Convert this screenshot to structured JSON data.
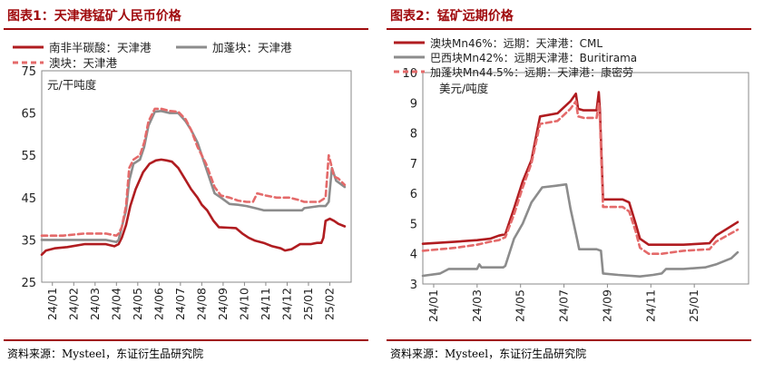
{
  "chart_data": [
    {
      "type": "line",
      "title": "图表1：天津港锰矿人民币价格",
      "ylabel": "元/干吨度",
      "ylim": [
        25,
        75
      ],
      "yticks": [
        "75",
        "65",
        "55",
        "45",
        "35",
        "25"
      ],
      "xlim": [
        0,
        14.5
      ],
      "xticks": [
        "24/01",
        "24/02",
        "24/03",
        "24/04",
        "24/05",
        "24/06",
        "24/07",
        "24/08",
        "24/09",
        "24/10",
        "24/11",
        "24/12",
        "25/01",
        "25/02"
      ],
      "grid": false,
      "legend": "top",
      "source": "资料来源：Mysteel，东证衍生品研究院",
      "series": [
        {
          "name": "南非半碳酸：天津港",
          "color": "#b01c20",
          "dash": "solid",
          "x": [
            0,
            0.2,
            0.6,
            1.2,
            2,
            3,
            3.4,
            3.6,
            3.75,
            3.95,
            4.15,
            4.4,
            4.75,
            5.05,
            5.35,
            5.6,
            5.85,
            6.1,
            6.4,
            6.7,
            7,
            7.3,
            7.5,
            7.75,
            8.05,
            8.3,
            9.1,
            9.4,
            9.7,
            10,
            10.4,
            10.8,
            11.2,
            11.4,
            11.7,
            12.1,
            12.6,
            12.9,
            13.1,
            13.2,
            13.3,
            13.5,
            13.7,
            13.9,
            14.2
          ],
          "y": [
            31.5,
            32.5,
            33,
            33.3,
            34,
            34,
            33.5,
            34,
            35.5,
            38.5,
            43,
            47,
            51,
            53,
            53.8,
            54,
            53.8,
            53.5,
            52,
            49.5,
            47,
            45,
            43.3,
            42,
            39.5,
            38,
            37.8,
            36.5,
            35.5,
            34.8,
            34.3,
            33.5,
            33,
            32.5,
            32.8,
            34,
            34,
            34.3,
            34.3,
            35.5,
            39.5,
            40,
            39.5,
            38.8,
            38.2
          ]
        },
        {
          "name": "加蓬块：天津港",
          "color": "#8c8c8c",
          "dash": "solid",
          "x": [
            0,
            1,
            2,
            3,
            3.5,
            3.6,
            3.75,
            3.95,
            4.1,
            4.3,
            4.6,
            4.8,
            5.0,
            5.3,
            5.6,
            6,
            6.4,
            6.75,
            7,
            7.3,
            7.7,
            8.1,
            8.4,
            8.8,
            9.2,
            9.6,
            10,
            10.4,
            11,
            11.6,
            12,
            12.2,
            12.3,
            13,
            13.3,
            13.45,
            13.6,
            13.8,
            14.2
          ],
          "y": [
            35,
            35,
            35,
            35,
            34.5,
            35,
            38,
            42,
            49,
            53,
            54,
            57,
            62,
            65.3,
            65.5,
            65,
            65,
            63,
            61,
            58,
            52,
            46,
            45,
            43.5,
            43.3,
            43,
            42.5,
            42,
            42,
            42,
            42,
            42,
            42.5,
            43,
            43,
            44,
            52,
            49,
            47.5
          ]
        },
        {
          "name": "澳块：天津港",
          "color": "#e46a6a",
          "dash": "dashed",
          "x": [
            0,
            1,
            2,
            3,
            3.5,
            3.6,
            3.75,
            3.95,
            4.1,
            4.3,
            4.6,
            4.8,
            5.0,
            5.3,
            5.6,
            6,
            6.4,
            6.75,
            7,
            7.3,
            7.7,
            8.1,
            8.4,
            8.8,
            9.2,
            9.6,
            9.9,
            10.1,
            10.5,
            11,
            11.6,
            12,
            12.3,
            12.6,
            13,
            13.3,
            13.45,
            13.55,
            13.7,
            13.9,
            14.2
          ],
          "y": [
            36,
            36,
            36.5,
            36.5,
            36,
            36.5,
            38,
            43,
            52,
            54,
            55,
            58,
            63,
            66,
            66,
            65.5,
            65.3,
            63.5,
            61,
            57,
            53,
            47.5,
            45.5,
            45,
            44.3,
            44,
            44,
            46,
            45.5,
            45,
            45,
            44.5,
            44,
            44,
            44,
            45,
            55,
            53,
            50,
            49.5,
            48
          ]
        }
      ]
    },
    {
      "type": "line",
      "title": "图表2：锰矿远期价格",
      "ylabel": "美元/吨度",
      "ylim": [
        3,
        10
      ],
      "yticks": [
        "10",
        "9",
        "8",
        "7",
        "6",
        "5",
        "4",
        "3"
      ],
      "xlim": [
        0,
        15
      ],
      "xticks": [
        "24/01",
        "24/03",
        "24/05",
        "24/07",
        "24/09",
        "24/11",
        "25/01"
      ],
      "grid": false,
      "legend": "top",
      "source": "资料来源：Mysteel，东证衍生品研究院",
      "series": [
        {
          "name": "澳块Mn46%：远期：天津港：CML",
          "color": "#b01c20",
          "dash": "solid",
          "x": [
            0,
            1.5,
            2.5,
            3.1,
            3.5,
            3.8,
            4.2,
            4.6,
            5.0,
            5.4,
            6.2,
            6.8,
            7.05,
            7.15,
            7.4,
            8,
            8.1,
            8.15,
            8.3,
            8.5,
            9.2,
            9.5,
            9.8,
            10,
            10.4,
            11,
            12,
            13.2,
            13.5,
            14.5
          ],
          "y": [
            4.33,
            4.4,
            4.45,
            4.5,
            4.6,
            4.65,
            5.5,
            6.4,
            7.1,
            8.55,
            8.65,
            9.05,
            9.3,
            8.8,
            8.75,
            8.75,
            9.35,
            8.8,
            5.8,
            5.8,
            5.8,
            5.7,
            5.0,
            4.5,
            4.3,
            4.3,
            4.3,
            4.35,
            4.6,
            5.05
          ]
        },
        {
          "name": "巴西块Mn42%：远期天津港：Buritirama",
          "color": "#8c8c8c",
          "dash": "solid",
          "x": [
            0,
            0.8,
            1.2,
            1.8,
            2.5,
            2.6,
            2.7,
            3.0,
            3.7,
            3.8,
            4.2,
            4.6,
            5.0,
            5.5,
            6.1,
            6.6,
            6.8,
            7.1,
            7.2,
            8.0,
            8.2,
            8.3,
            9.0,
            10.0,
            10.6,
            11.0,
            11.2,
            12.0,
            13.0,
            13.5,
            14.2,
            14.5
          ],
          "y": [
            3.27,
            3.35,
            3.5,
            3.5,
            3.5,
            3.65,
            3.55,
            3.55,
            3.55,
            3.6,
            4.5,
            5.0,
            5.7,
            6.2,
            6.25,
            6.3,
            5.5,
            4.5,
            4.15,
            4.15,
            4.1,
            3.35,
            3.3,
            3.25,
            3.3,
            3.35,
            3.5,
            3.5,
            3.55,
            3.65,
            3.85,
            4.05
          ]
        },
        {
          "name": "加蓬块Mn44.5%：远期：天津港：康密劳",
          "color": "#e46a6a",
          "dash": "dashed",
          "x": [
            0,
            1.5,
            2.5,
            3.1,
            3.5,
            3.8,
            4.2,
            4.6,
            5.0,
            5.4,
            6.2,
            6.8,
            7.05,
            7.15,
            7.4,
            8,
            8.1,
            8.15,
            8.3,
            8.5,
            9.2,
            9.5,
            9.8,
            10,
            10.4,
            11,
            12,
            13.2,
            13.5,
            14.5
          ],
          "y": [
            4.1,
            4.2,
            4.3,
            4.4,
            4.45,
            4.55,
            5.3,
            6.2,
            7.0,
            8.3,
            8.4,
            8.8,
            9.05,
            8.55,
            8.5,
            8.5,
            9.0,
            8.5,
            5.55,
            5.55,
            5.55,
            5.4,
            4.75,
            4.2,
            4.0,
            4.0,
            4.1,
            4.15,
            4.4,
            4.8
          ]
        }
      ]
    }
  ]
}
